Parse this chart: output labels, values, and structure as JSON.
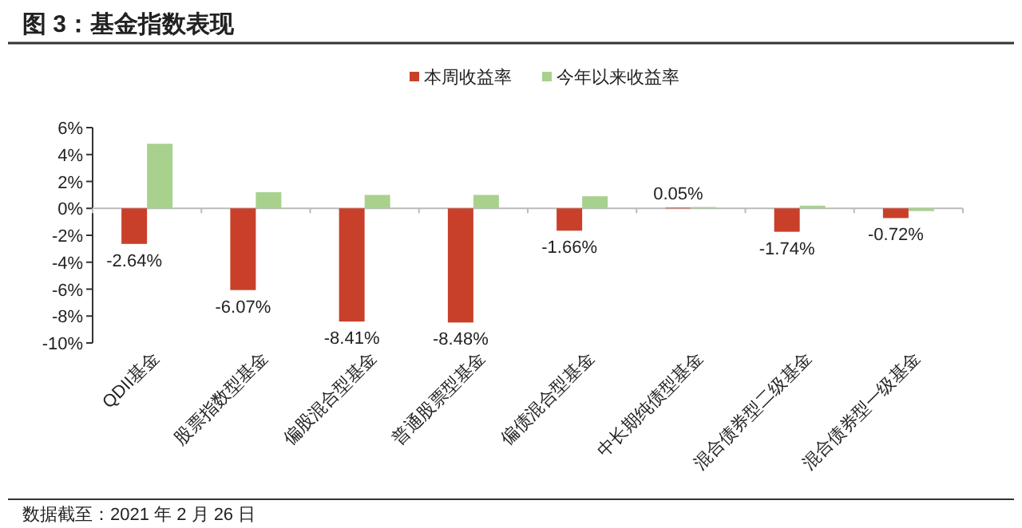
{
  "chart_data": {
    "type": "bar",
    "title": "图 3：基金指数表现",
    "categories": [
      "QDII基金",
      "股票指数型基金",
      "偏股混合型基金",
      "普通股票型基金",
      "偏债混合型基金",
      "中长期纯债型基金",
      "混合债券型二级基金",
      "混合债券型一级基金"
    ],
    "series": [
      {
        "name": "本周收益率",
        "color": "#c9402a",
        "values": [
          -2.64,
          -6.07,
          -8.41,
          -8.48,
          -1.66,
          0.05,
          -1.74,
          -0.72
        ],
        "value_labels": [
          "-2.64%",
          "-6.07%",
          "-8.41%",
          "-8.48%",
          "-1.66%",
          "0.05%",
          "-1.74%",
          "-0.72%"
        ]
      },
      {
        "name": "今年以来收益率",
        "color": "#a9d18e",
        "values": [
          4.8,
          1.2,
          1.0,
          1.0,
          0.9,
          0.1,
          0.2,
          -0.2
        ]
      }
    ],
    "ylim": [
      -10,
      6
    ],
    "yticks": [
      {
        "value": -10,
        "label": "-10%"
      },
      {
        "value": -8,
        "label": "-8%"
      },
      {
        "value": -6,
        "label": "-6%"
      },
      {
        "value": -4,
        "label": "-4%"
      },
      {
        "value": -2,
        "label": "-2%"
      },
      {
        "value": 0,
        "label": "0%"
      },
      {
        "value": 2,
        "label": "2%"
      },
      {
        "value": 4,
        "label": "4%"
      },
      {
        "value": 6,
        "label": "6%"
      }
    ],
    "legend": "top",
    "annotations": [
      "数据截至：2021 年 2 月 26 日"
    ]
  }
}
